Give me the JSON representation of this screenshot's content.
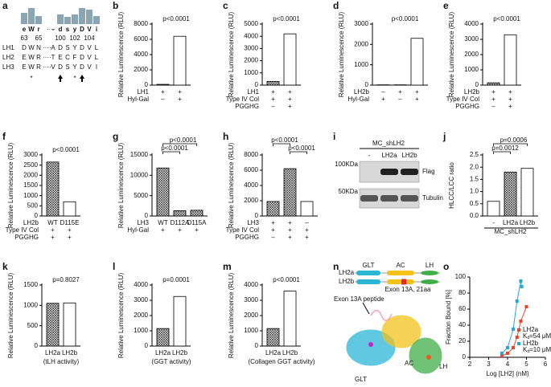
{
  "chart_data": [
    {
      "type": "bar",
      "panel": "b",
      "ylabel": "Relative Luminescence (RLU)",
      "values": [
        100,
        6400
      ],
      "ylim": [
        0,
        8000
      ],
      "yticks": [
        0,
        2000,
        4000,
        6000,
        8000
      ],
      "annotations": [
        "p<0.0001"
      ],
      "bar_fill": [
        "pattern",
        "white"
      ],
      "rows": [
        {
          "label": "LH1",
          "values": [
            "+",
            "+"
          ]
        },
        {
          "label": "Hyl-Gal",
          "values": [
            "–",
            "+"
          ]
        }
      ]
    },
    {
      "type": "bar",
      "panel": "c",
      "ylabel": "Relative Luminescence (RLU)",
      "values": [
        300,
        4200
      ],
      "ylim": [
        0,
        5000
      ],
      "yticks": [
        0,
        1000,
        2000,
        3000,
        4000,
        5000
      ],
      "annotations": [
        "p<0.0001"
      ],
      "bar_fill": [
        "pattern",
        "white"
      ],
      "rows": [
        {
          "label": "LH1",
          "values": [
            "+",
            "+"
          ]
        },
        {
          "label": "Type IV Col",
          "values": [
            "+",
            "+"
          ]
        },
        {
          "label": "PGGHG",
          "values": [
            "–",
            "+"
          ]
        }
      ]
    },
    {
      "type": "bar",
      "panel": "d",
      "ylabel": "Relative Luminescence (RLU)",
      "values": [
        15,
        15,
        2300
      ],
      "ylim": [
        0,
        3000
      ],
      "yticks": [
        0,
        1000,
        2000,
        3000
      ],
      "annotations": [
        "p<0.0001"
      ],
      "bar_fill": [
        "white",
        "white",
        "white"
      ],
      "rows": [
        {
          "label": "LH2b",
          "values": [
            "–",
            "+",
            "+"
          ]
        },
        {
          "label": "Hyl-Gal",
          "values": [
            "+",
            "–",
            "+"
          ]
        }
      ]
    },
    {
      "type": "bar",
      "panel": "e",
      "ylabel": "Relative Luminescence (RLU)",
      "values": [
        150,
        3300
      ],
      "ylim": [
        0,
        4000
      ],
      "yticks": [
        0,
        1000,
        2000,
        3000,
        4000
      ],
      "annotations": [
        "p<0.0001"
      ],
      "bar_fill": [
        "pattern",
        "white"
      ],
      "rows": [
        {
          "label": "LH2b",
          "values": [
            "+",
            "+"
          ]
        },
        {
          "label": "Type IV Col",
          "values": [
            "+",
            "+"
          ]
        },
        {
          "label": "PGGHG",
          "values": [
            "–",
            "+"
          ]
        }
      ]
    },
    {
      "type": "bar",
      "panel": "f",
      "ylabel": "Relative Luminescence (RLU)",
      "values": [
        2650,
        700
      ],
      "ylim": [
        0,
        3000
      ],
      "yticks": [
        0,
        500,
        1000,
        1500,
        2000,
        2500,
        3000
      ],
      "annotations": [
        "p<0.0001"
      ],
      "bar_fill": [
        "pattern",
        "white"
      ],
      "rows": [
        {
          "label": "LH2b",
          "values": [
            "WT",
            "D115E"
          ]
        },
        {
          "label": "Type IV Col",
          "values": [
            "+",
            "+"
          ]
        },
        {
          "label": "PGGHG",
          "values": [
            "+",
            "+"
          ]
        }
      ]
    },
    {
      "type": "bar",
      "panel": "g",
      "ylabel": "Relative Luminescence (RLU)",
      "values": [
        11800,
        1300,
        1400
      ],
      "ylim": [
        0,
        15000
      ],
      "yticks": [
        0,
        5000,
        10000,
        15000
      ],
      "annotations": [
        "p<0.0001",
        "p<0.0001"
      ],
      "bar_fill": [
        "pattern",
        "pattern",
        "pattern"
      ],
      "rows": [
        {
          "label": "LH3",
          "values": [
            "WT",
            "D112A",
            "D115A"
          ]
        },
        {
          "label": "Hyl-Gal",
          "values": [
            "+",
            "+",
            "+"
          ]
        }
      ]
    },
    {
      "type": "bar",
      "panel": "h",
      "ylabel": "Relative Luminescence (RLU)",
      "values": [
        1900,
        6200,
        1900
      ],
      "ylim": [
        0,
        8000
      ],
      "yticks": [
        0,
        2000,
        4000,
        6000,
        8000
      ],
      "annotations": [
        "p<0.0001",
        "p<0.0001"
      ],
      "bar_fill": [
        "pattern",
        "pattern",
        "white"
      ],
      "rows": [
        {
          "label": "LH3",
          "values": [
            "+",
            "+",
            "–"
          ]
        },
        {
          "label": "Type IV Col",
          "values": [
            "+",
            "+",
            "+"
          ]
        },
        {
          "label": "PGGHG",
          "values": [
            "–",
            "+",
            "+"
          ]
        }
      ]
    },
    {
      "type": "bar",
      "panel": "j",
      "ylabel": "HLCC/LCC ratio",
      "values": [
        0.6,
        1.8,
        1.95
      ],
      "ylim": [
        0,
        2.5
      ],
      "yticks": [
        {
          "value": 0,
          "label": "0.0"
        },
        0.5,
        {
          "value": 1,
          "label": "1.0"
        },
        1.5,
        {
          "value": 2,
          "label": "2.0"
        },
        2.5
      ],
      "annotations": [
        "p=0.0006",
        "p=0.0012"
      ],
      "bar_fill": [
        "white",
        "pattern",
        "white"
      ],
      "categories": [
        "-",
        "LH2a",
        "LH2b"
      ],
      "xlabel": "MC_shLH2"
    },
    {
      "type": "bar",
      "panel": "k",
      "ylabel": "Relative Luminescence (RLU)",
      "values": [
        1050,
        1060
      ],
      "ylim": [
        0,
        1500
      ],
      "yticks": [
        0,
        500,
        1000,
        1500
      ],
      "annotations": [
        "p=0.8027"
      ],
      "bar_fill": [
        "pattern",
        "white"
      ],
      "categories": [
        "LH2a",
        "LH2b"
      ],
      "xlabel": "(tLH activity)"
    },
    {
      "type": "bar",
      "panel": "l",
      "ylabel": "Relative Luminescence (RLU)",
      "values": [
        1150,
        3250
      ],
      "ylim": [
        0,
        4000
      ],
      "yticks": [
        0,
        1000,
        2000,
        3000,
        4000
      ],
      "annotations": [
        "p=0.0001"
      ],
      "bar_fill": [
        "pattern",
        "white"
      ],
      "categories": [
        "LH2a",
        "LH2b"
      ],
      "xlabel": "(GGT activity)"
    },
    {
      "type": "bar",
      "panel": "m",
      "ylabel": "Relative Luminescence (RLU)",
      "values": [
        1150,
        3600
      ],
      "ylim": [
        0,
        4000
      ],
      "yticks": [
        0,
        1000,
        2000,
        3000,
        4000
      ],
      "annotations": [
        "p<0.0001"
      ],
      "bar_fill": [
        "pattern",
        "white"
      ],
      "categories": [
        "LH2a",
        "LH2b"
      ],
      "xlabel": "(Collagen GGT activity)"
    },
    {
      "type": "scatter",
      "panel": "o",
      "ylabel": "Fraction Bound [%]",
      "xlabel": "Log [LH2] (nM)",
      "xlim": [
        2,
        6
      ],
      "xticks": [
        2,
        3,
        4,
        5,
        6
      ],
      "ylim": [
        0,
        100
      ],
      "yticks": [
        0,
        20,
        40,
        60,
        80,
        100
      ],
      "series": [
        {
          "name": "LH2a",
          "color": "#e8442d",
          "x": [
            3.7,
            4.0,
            4.3,
            4.5,
            4.7,
            5.0
          ],
          "values": [
            2,
            5,
            12,
            25,
            45,
            63
          ],
          "label_parts": [
            "K",
            "d",
            "=54 μM"
          ]
        },
        {
          "name": "LH2b",
          "color": "#2aa7d8",
          "x": [
            3.7,
            4.0,
            4.3,
            4.5,
            4.7,
            4.75
          ],
          "values": [
            5,
            12,
            35,
            70,
            95,
            88
          ],
          "label_parts": [
            "K",
            "d",
            "=10 μM"
          ]
        }
      ]
    }
  ],
  "panel_a": {
    "label": "a",
    "logo": [
      "e",
      "W",
      "r",
      "-",
      "d",
      "s",
      "y",
      "D",
      "V",
      "i"
    ],
    "positions": [
      "63",
      null,
      "65",
      null,
      "100",
      null,
      "102",
      null,
      "104",
      null
    ],
    "rows": [
      {
        "name": "LH1",
        "residues": [
          "D",
          "W",
          "N",
          "A",
          "D",
          "S",
          "Y",
          "D",
          "V",
          "L"
        ]
      },
      {
        "name": "LH2",
        "residues": [
          "E",
          "W",
          "R",
          "T",
          "E",
          "C",
          "F",
          "D",
          "V",
          "L"
        ]
      },
      {
        "name": "LH3",
        "residues": [
          "E",
          "W",
          "R",
          "V",
          "D",
          "S",
          "Y",
          "D",
          "V",
          "I"
        ]
      }
    ],
    "markers": [
      null,
      "*",
      null,
      null,
      null,
      null,
      "*",
      null,
      null,
      null
    ]
  },
  "panel_i": {
    "label": "i",
    "title": "MC_shLH2",
    "lanes": [
      "-",
      "LH2a",
      "LH2b"
    ],
    "sizes": [
      "100KDa",
      "50KDa"
    ],
    "bands": [
      "Flag",
      "Tubulin"
    ]
  },
  "panel_n": {
    "label": "n",
    "isoforms": [
      "LH2a",
      "LH2b"
    ],
    "domains": [
      "GLT",
      "AC",
      "LH"
    ],
    "exon_label": "Exon 13A, 21aa",
    "peptide_label": "Exon 13A peptide",
    "structure_labels": [
      "GLT",
      "AC",
      "LH"
    ]
  }
}
